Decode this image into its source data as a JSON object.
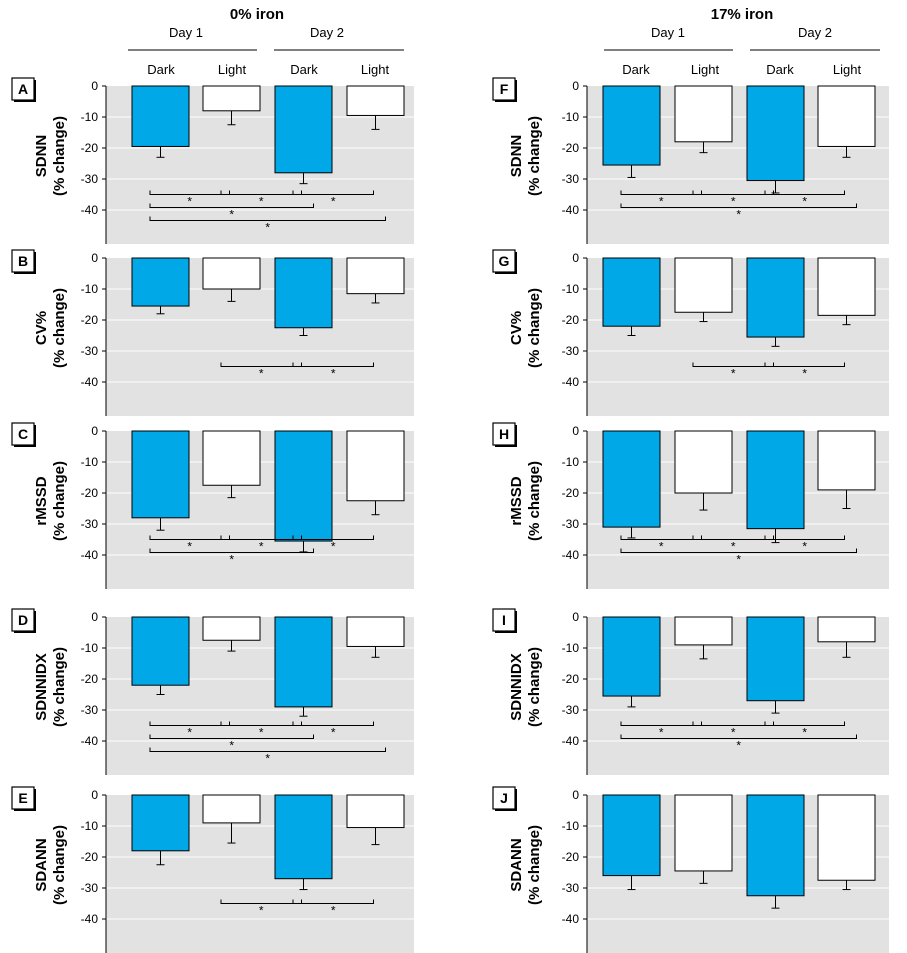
{
  "colors": {
    "dark_bar": "#00a8e8",
    "light_bar": "#ffffff",
    "panel_bg": "#e2e2e2",
    "grid": "#ffffff",
    "stroke": "#000000"
  },
  "headers": {
    "groups": [
      {
        "title": "0% iron",
        "day1": "Day 1",
        "day2": "Day 2",
        "conditions": [
          "Dark",
          "Light",
          "Dark",
          "Light"
        ]
      },
      {
        "title": "17% iron",
        "day1": "Day 1",
        "day2": "Day 2",
        "conditions": [
          "Dark",
          "Light",
          "Dark",
          "Light"
        ]
      }
    ]
  },
  "chart_data": [
    {
      "panel": "A",
      "type": "bar",
      "column": "0% iron",
      "ylabel": [
        "SDNN",
        "(% change)"
      ],
      "categories": [
        "Day 1 Dark",
        "Day 1 Light",
        "Day 2 Dark",
        "Day 2 Light"
      ],
      "values": [
        -19.5,
        -8,
        -28,
        -9.5
      ],
      "errors": [
        3.5,
        4.5,
        3.5,
        4.5
      ],
      "ylim": [
        -50,
        0
      ],
      "yticks": [
        0,
        -10,
        -20,
        -30,
        -40
      ],
      "tick_labels": [
        "0",
        "-10",
        "-20",
        "-30",
        "-40"
      ],
      "annotations": [
        {
          "from": 0,
          "to": 1,
          "row": 0,
          "label": "*"
        },
        {
          "from": 1,
          "to": 2,
          "row": 0,
          "label": "*"
        },
        {
          "from": 2,
          "to": 3,
          "row": 0,
          "label": "*"
        },
        {
          "from": 0,
          "to": 2,
          "row": 1,
          "label": "*"
        },
        {
          "from": 0,
          "to": 3,
          "row": 2,
          "label": "*"
        }
      ]
    },
    {
      "panel": "B",
      "type": "bar",
      "column": "0% iron",
      "ylabel": [
        "CV%",
        "(% change)"
      ],
      "categories": [
        "Day 1 Dark",
        "Day 1 Light",
        "Day 2 Dark",
        "Day 2 Light"
      ],
      "values": [
        -15.5,
        -10,
        -22.5,
        -11.5
      ],
      "errors": [
        2.5,
        4,
        2.5,
        3
      ],
      "ylim": [
        -50,
        0
      ],
      "yticks": [
        0,
        -10,
        -20,
        -30,
        -40
      ],
      "tick_labels": [
        "0",
        "-10",
        "-20",
        "-30",
        "-40"
      ],
      "annotations": [
        {
          "from": 1,
          "to": 2,
          "row": 0,
          "label": "*"
        },
        {
          "from": 2,
          "to": 3,
          "row": 0,
          "label": "*"
        }
      ]
    },
    {
      "panel": "C",
      "type": "bar",
      "column": "0% iron",
      "ylabel": [
        "rMSSD",
        "(% change)"
      ],
      "categories": [
        "Day 1 Dark",
        "Day 1 Light",
        "Day 2 Dark",
        "Day 2 Light"
      ],
      "values": [
        -28,
        -17.5,
        -35.5,
        -22.5
      ],
      "errors": [
        4,
        4,
        3.5,
        4.5
      ],
      "ylim": [
        -50,
        0
      ],
      "yticks": [
        0,
        -10,
        -20,
        -30,
        -40
      ],
      "tick_labels": [
        "0",
        "-10",
        "-20",
        "-30",
        "-40"
      ],
      "annotations": [
        {
          "from": 0,
          "to": 1,
          "row": 0,
          "label": "*"
        },
        {
          "from": 1,
          "to": 2,
          "row": 0,
          "label": "*"
        },
        {
          "from": 2,
          "to": 3,
          "row": 0,
          "label": "*"
        },
        {
          "from": 0,
          "to": 2,
          "row": 1,
          "label": "*"
        }
      ]
    },
    {
      "panel": "D",
      "type": "bar",
      "column": "0% iron",
      "ylabel": [
        "SDNNIDX",
        "(% change)"
      ],
      "categories": [
        "Day 1 Dark",
        "Day 1 Light",
        "Day 2 Dark",
        "Day 2 Light"
      ],
      "values": [
        -22,
        -7.5,
        -29,
        -9.5
      ],
      "errors": [
        3,
        3.5,
        3,
        3.5
      ],
      "ylim": [
        -50,
        0
      ],
      "yticks": [
        0,
        -10,
        -20,
        -30,
        -40
      ],
      "tick_labels": [
        "0",
        "-10",
        "-20",
        "-30",
        "-40"
      ],
      "annotations": [
        {
          "from": 0,
          "to": 1,
          "row": 0,
          "label": "*"
        },
        {
          "from": 1,
          "to": 2,
          "row": 0,
          "label": "*"
        },
        {
          "from": 2,
          "to": 3,
          "row": 0,
          "label": "*"
        },
        {
          "from": 0,
          "to": 2,
          "row": 1,
          "label": "*"
        },
        {
          "from": 0,
          "to": 3,
          "row": 2,
          "label": "*"
        }
      ]
    },
    {
      "panel": "E",
      "type": "bar",
      "column": "0% iron",
      "ylabel": [
        "SDANN",
        "(% change)"
      ],
      "categories": [
        "Day 1 Dark",
        "Day 1 Light",
        "Day 2 Dark",
        "Day 2 Light"
      ],
      "values": [
        -18,
        -9,
        -27,
        -10.5
      ],
      "errors": [
        4.5,
        6.5,
        3.5,
        5.5
      ],
      "ylim": [
        -50,
        0
      ],
      "yticks": [
        0,
        -10,
        -20,
        -30,
        -40
      ],
      "tick_labels": [
        "0",
        "-10",
        "-20",
        "-30",
        "-40"
      ],
      "annotations": [
        {
          "from": 1,
          "to": 2,
          "row": 0,
          "label": "*"
        },
        {
          "from": 2,
          "to": 3,
          "row": 0,
          "label": "*"
        }
      ]
    },
    {
      "panel": "F",
      "type": "bar",
      "column": "17% iron",
      "ylabel": [
        "SDNN",
        "(% change)"
      ],
      "categories": [
        "Day 1 Dark",
        "Day 1 Light",
        "Day 2 Dark",
        "Day 2 Light"
      ],
      "values": [
        -25.5,
        -18,
        -30.5,
        -19.5
      ],
      "errors": [
        4,
        3.5,
        4,
        3.5
      ],
      "ylim": [
        -50,
        0
      ],
      "yticks": [
        0,
        -10,
        -20,
        -30,
        -40
      ],
      "tick_labels": [
        "0",
        "-10",
        "-20",
        "-30",
        "-40"
      ],
      "annotations": [
        {
          "from": 0,
          "to": 1,
          "row": 0,
          "label": "*"
        },
        {
          "from": 1,
          "to": 2,
          "row": 0,
          "label": "*"
        },
        {
          "from": 2,
          "to": 3,
          "row": 0,
          "label": "*"
        },
        {
          "from": 0,
          "to": 3,
          "row": 1,
          "label": "*"
        }
      ]
    },
    {
      "panel": "G",
      "type": "bar",
      "column": "17% iron",
      "ylabel": [
        "CV%",
        "(% change)"
      ],
      "categories": [
        "Day 1 Dark",
        "Day 1 Light",
        "Day 2 Dark",
        "Day 2 Light"
      ],
      "values": [
        -22,
        -17.5,
        -25.5,
        -18.5
      ],
      "errors": [
        3,
        3,
        3,
        3
      ],
      "ylim": [
        -50,
        0
      ],
      "yticks": [
        0,
        -10,
        -20,
        -30,
        -40
      ],
      "tick_labels": [
        "0",
        "-10",
        "-20",
        "-30",
        "-40"
      ],
      "annotations": [
        {
          "from": 1,
          "to": 2,
          "row": 0,
          "label": "*"
        },
        {
          "from": 2,
          "to": 3,
          "row": 0,
          "label": "*"
        }
      ]
    },
    {
      "panel": "H",
      "type": "bar",
      "column": "17% iron",
      "ylabel": [
        "rMSSD",
        "(% change)"
      ],
      "categories": [
        "Day 1 Dark",
        "Day 1 Light",
        "Day 2 Dark",
        "Day 2 Light"
      ],
      "values": [
        -31,
        -20,
        -31.5,
        -19
      ],
      "errors": [
        3.5,
        5.5,
        4.5,
        6
      ],
      "ylim": [
        -50,
        0
      ],
      "yticks": [
        0,
        -10,
        -20,
        -30,
        -40
      ],
      "tick_labels": [
        "0",
        "-10",
        "-20",
        "-30",
        "-40"
      ],
      "annotations": [
        {
          "from": 0,
          "to": 1,
          "row": 0,
          "label": "*"
        },
        {
          "from": 1,
          "to": 2,
          "row": 0,
          "label": "*"
        },
        {
          "from": 2,
          "to": 3,
          "row": 0,
          "label": "*"
        },
        {
          "from": 0,
          "to": 3,
          "row": 1,
          "label": "*"
        }
      ]
    },
    {
      "panel": "I",
      "type": "bar",
      "column": "17% iron",
      "ylabel": [
        "SDNNIDX",
        "(% change)"
      ],
      "categories": [
        "Day 1 Dark",
        "Day 1 Light",
        "Day 2 Dark",
        "Day 2 Light"
      ],
      "values": [
        -25.5,
        -9,
        -27,
        -8
      ],
      "errors": [
        3.5,
        4.5,
        4,
        5
      ],
      "ylim": [
        -50,
        0
      ],
      "yticks": [
        0,
        -10,
        -20,
        -30,
        -40
      ],
      "tick_labels": [
        "0",
        "-10",
        "-20",
        "-30",
        "-40"
      ],
      "annotations": [
        {
          "from": 0,
          "to": 1,
          "row": 0,
          "label": "*"
        },
        {
          "from": 1,
          "to": 2,
          "row": 0,
          "label": "*"
        },
        {
          "from": 2,
          "to": 3,
          "row": 0,
          "label": "*"
        },
        {
          "from": 0,
          "to": 3,
          "row": 1,
          "label": "*"
        }
      ]
    },
    {
      "panel": "J",
      "type": "bar",
      "column": "17% iron",
      "ylabel": [
        "SDANN",
        "(% change)"
      ],
      "categories": [
        "Day 1 Dark",
        "Day 1 Light",
        "Day 2 Dark",
        "Day 2 Light"
      ],
      "values": [
        -26,
        -24.5,
        -32.5,
        -27.5
      ],
      "errors": [
        4.5,
        4,
        4,
        3
      ],
      "ylim": [
        -50,
        0
      ],
      "yticks": [
        0,
        -10,
        -20,
        -30,
        -40
      ],
      "tick_labels": [
        "0",
        "-10",
        "-20",
        "-30",
        "-40"
      ],
      "annotations": []
    }
  ]
}
